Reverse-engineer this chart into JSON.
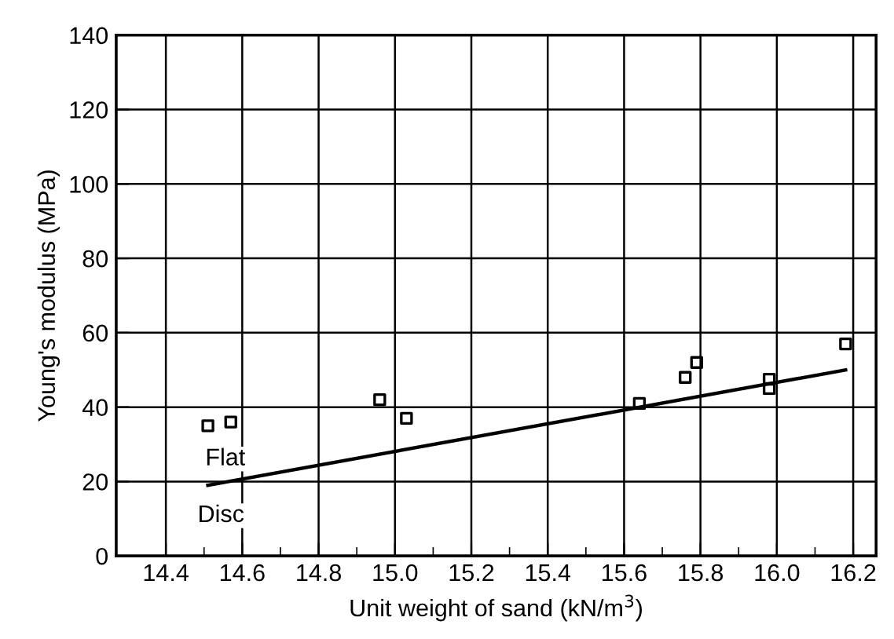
{
  "chart_data": {
    "type": "scatter",
    "xlabel": "Unit weight of sand (kN/m$^{3}$)",
    "ylabel": "Young's modulus (MPa)",
    "series": [
      {
        "color": "#000000",
        "marker": "square",
        "x": [
          14.51,
          14.57,
          14.96,
          15.03,
          15.64,
          15.76,
          15.79,
          15.98,
          15.98,
          16.18
        ],
        "values": [
          35,
          36,
          42,
          37,
          41,
          48,
          52,
          47.5,
          45,
          57
        ]
      },
      {
        "type": "line",
        "color": "#000000",
        "marker": "none",
        "line_style": "solid",
        "x": [
          14.51,
          16.18
        ],
        "values": [
          19,
          50
        ]
      }
    ],
    "annotations": [
      "Flat",
      "Disc"
    ],
    "xlim": [
      14.27,
      16.26
    ],
    "ylim": [
      0,
      140
    ],
    "xticks": [
      14.4,
      {
        "value": 14.5,
        "label": null
      },
      14.6,
      {
        "value": 14.7,
        "label": null
      },
      14.8,
      {
        "value": 14.9,
        "label": null
      },
      {
        "value": 15.0,
        "label": "15.0"
      },
      {
        "value": 15.1,
        "label": null
      },
      15.2,
      {
        "value": 15.3,
        "label": null
      },
      15.4,
      {
        "value": 15.5,
        "label": null
      },
      15.6,
      {
        "value": 15.7,
        "label": null
      },
      15.8,
      {
        "value": 15.9,
        "label": null
      },
      {
        "value": 16.0,
        "label": "16.0"
      },
      {
        "value": 16.1,
        "label": null
      },
      16.2
    ],
    "yticks": [
      0,
      20,
      40,
      60,
      80,
      100,
      120,
      140
    ],
    "grid": true,
    "legend": false
  }
}
